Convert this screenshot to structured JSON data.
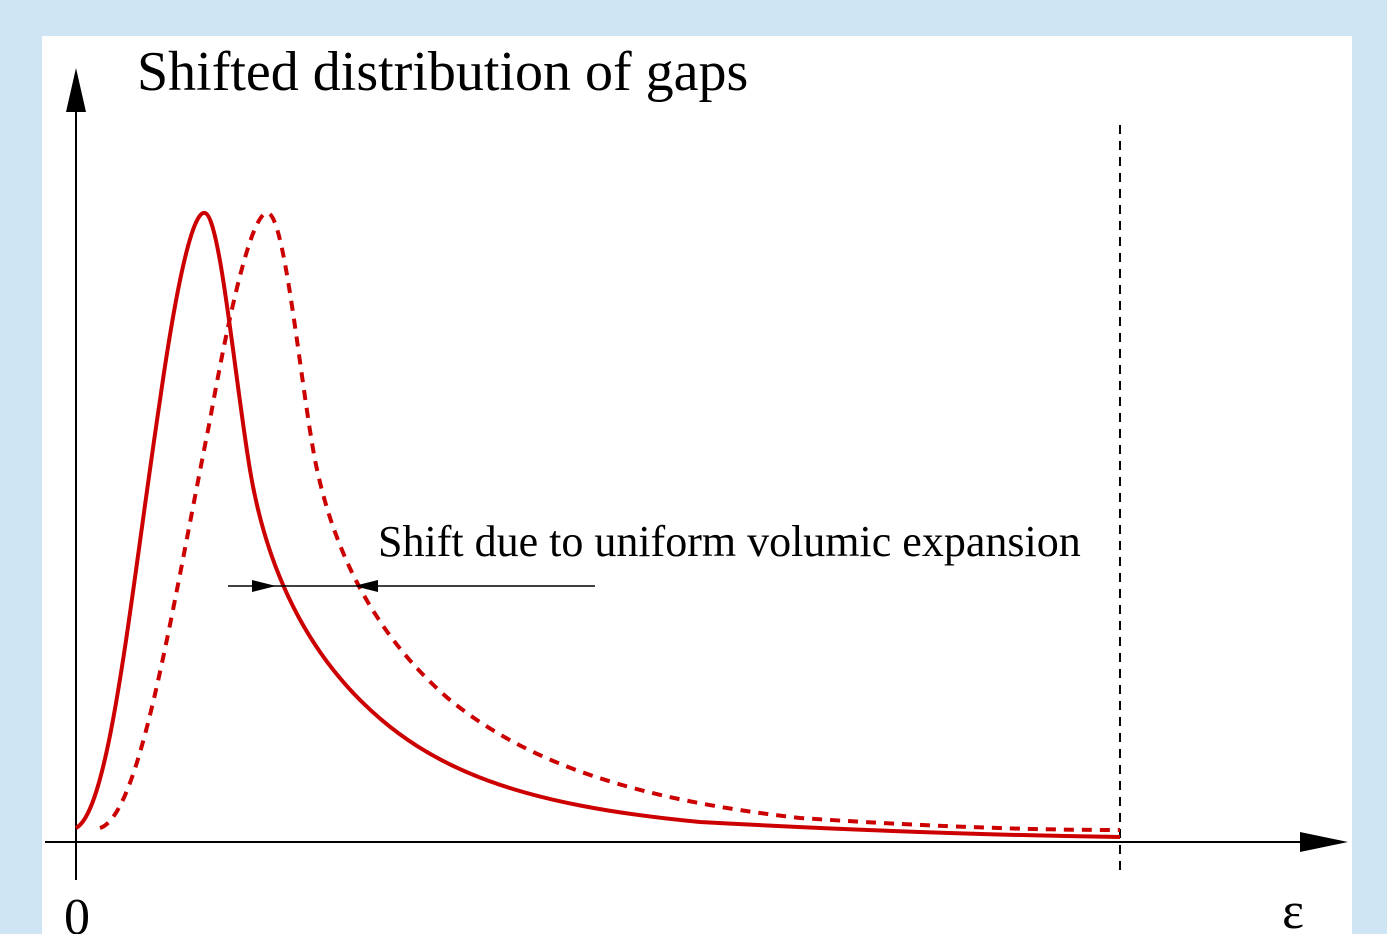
{
  "title": "Shifted distribution of gaps",
  "annotation": "Shift due to uniform volumic expansion",
  "axis_labels": {
    "origin": "0",
    "x": "ε"
  }
}
